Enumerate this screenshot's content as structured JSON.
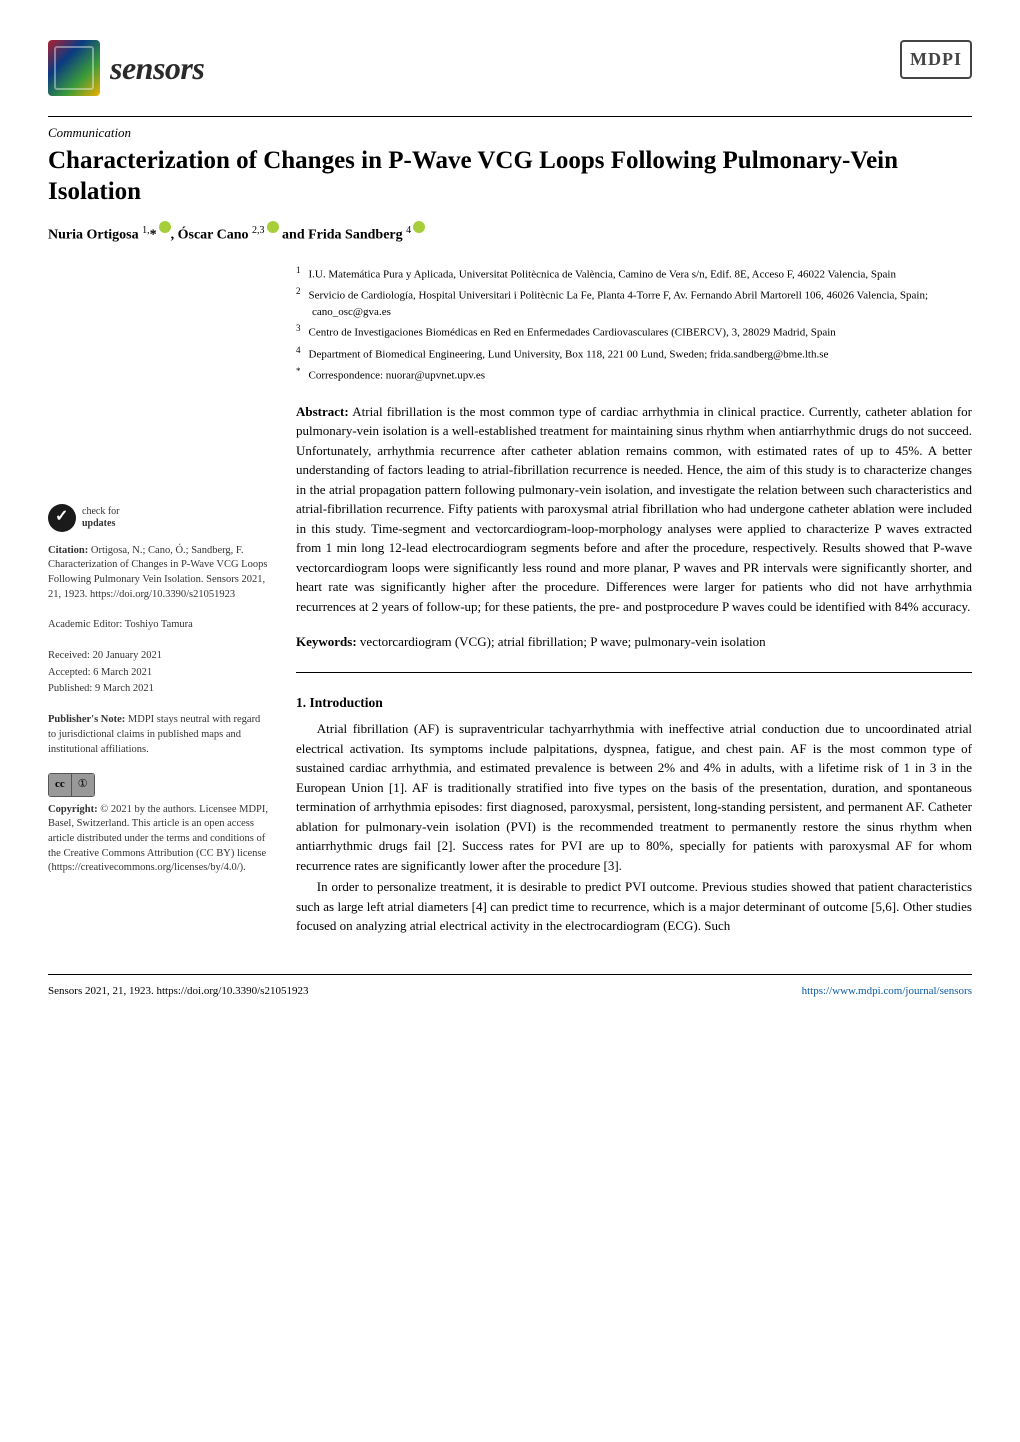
{
  "journal": {
    "name": "sensors",
    "publisher_logo": "MDPI"
  },
  "article": {
    "type": "Communication",
    "title": "Characterization of Changes in P-Wave VCG Loops Following Pulmonary-Vein Isolation",
    "authors_html": "Nuria Ortigosa <sup>1,</sup>* , Óscar Cano <sup>2,3</sup> and Frida Sandberg <sup>4</sup>"
  },
  "affiliations": [
    {
      "num": "1",
      "text": "I.U. Matemática Pura y Aplicada, Universitat Politècnica de València, Camino de Vera s/n, Edif. 8E, Acceso F, 46022 Valencia, Spain"
    },
    {
      "num": "2",
      "text": "Servicio de Cardiología, Hospital Universitari i Politècnic La Fe, Planta 4-Torre F, Av. Fernando Abril Martorell 106, 46026 Valencia, Spain; cano_osc@gva.es"
    },
    {
      "num": "3",
      "text": "Centro de Investigaciones Biomédicas en Red en Enfermedades Cardiovasculares (CIBERCV), 3, 28029 Madrid, Spain"
    },
    {
      "num": "4",
      "text": "Department of Biomedical Engineering, Lund University, Box 118, 221 00 Lund, Sweden; frida.sandberg@bme.lth.se"
    },
    {
      "num": "*",
      "text": "Correspondence: nuorar@upvnet.upv.es"
    }
  ],
  "abstract_label": "Abstract:",
  "abstract": "Atrial fibrillation is the most common type of cardiac arrhythmia in clinical practice. Currently, catheter ablation for pulmonary-vein isolation is a well-established treatment for maintaining sinus rhythm when antiarrhythmic drugs do not succeed. Unfortunately, arrhythmia recurrence after catheter ablation remains common, with estimated rates of up to 45%. A better understanding of factors leading to atrial-fibrillation recurrence is needed. Hence, the aim of this study is to characterize changes in the atrial propagation pattern following pulmonary-vein isolation, and investigate the relation between such characteristics and atrial-fibrillation recurrence. Fifty patients with paroxysmal atrial fibrillation who had undergone catheter ablation were included in this study. Time-segment and vectorcardiogram-loop-morphology analyses were applied to characterize P waves extracted from 1 min long 12-lead electrocardiogram segments before and after the procedure, respectively. Results showed that P-wave vectorcardiogram loops were significantly less round and more planar, P waves and PR intervals were significantly shorter, and heart rate was significantly higher after the procedure. Differences were larger for patients who did not have arrhythmia recurrences at 2 years of follow-up; for these patients, the pre- and postprocedure P waves could be identified with 84% accuracy.",
  "keywords_label": "Keywords:",
  "keywords": "vectorcardiogram (VCG); atrial fibrillation; P wave; pulmonary-vein isolation",
  "section1": {
    "heading": "1. Introduction",
    "p1": "Atrial fibrillation (AF) is supraventricular tachyarrhythmia with ineffective atrial conduction due to uncoordinated atrial electrical activation. Its symptoms include palpitations, dyspnea, fatigue, and chest pain. AF is the most common type of sustained cardiac arrhythmia, and estimated prevalence is between 2% and 4% in adults, with a lifetime risk of 1 in 3 in the European Union [1]. AF is traditionally stratified into five types on the basis of the presentation, duration, and spontaneous termination of arrhythmia episodes: first diagnosed, paroxysmal, persistent, long-standing persistent, and permanent AF. Catheter ablation for pulmonary-vein isolation (PVI) is the recommended treatment to permanently restore the sinus rhythm when antiarrhythmic drugs fail [2]. Success rates for PVI are up to 80%, specially for patients with paroxysmal AF for whom recurrence rates are significantly lower after the procedure [3].",
    "p2": "In order to personalize treatment, it is desirable to predict PVI outcome. Previous studies showed that patient characteristics such as large left atrial diameters [4] can predict time to recurrence, which is a major determinant of outcome [5,6]. Other studies focused on analyzing atrial electrical activity in the electrocardiogram (ECG). Such"
  },
  "sidebar": {
    "check_label": "check for",
    "check_label2": "updates",
    "citation_label": "Citation:",
    "citation": "Ortigosa, N.; Cano, Ó.; Sandberg, F. Characterization of Changes in P-Wave VCG Loops Following Pulmonary Vein Isolation. Sensors 2021, 21, 1923. https://doi.org/10.3390/s21051923",
    "editor_label": "Academic Editor:",
    "editor": "Toshiyo Tamura",
    "received": "Received: 20 January 2021",
    "accepted": "Accepted: 6 March 2021",
    "published": "Published: 9 March 2021",
    "pubnote_label": "Publisher's Note:",
    "pubnote": "MDPI stays neutral with regard to jurisdictional claims in published maps and institutional affiliations.",
    "cc_cc": "cc",
    "cc_by": "①",
    "copyright_label": "Copyright:",
    "copyright": "© 2021 by the authors. Licensee MDPI, Basel, Switzerland. This article is an open access article distributed under the terms and conditions of the Creative Commons Attribution (CC BY) license (https://creativecommons.org/licenses/by/4.0/)."
  },
  "footer": {
    "left": "Sensors 2021, 21, 1923. https://doi.org/10.3390/s21051923",
    "right": "https://www.mdpi.com/journal/sensors"
  },
  "colors": {
    "link": "#0a5aa8",
    "text": "#000000",
    "orcid": "#a6ce39"
  }
}
